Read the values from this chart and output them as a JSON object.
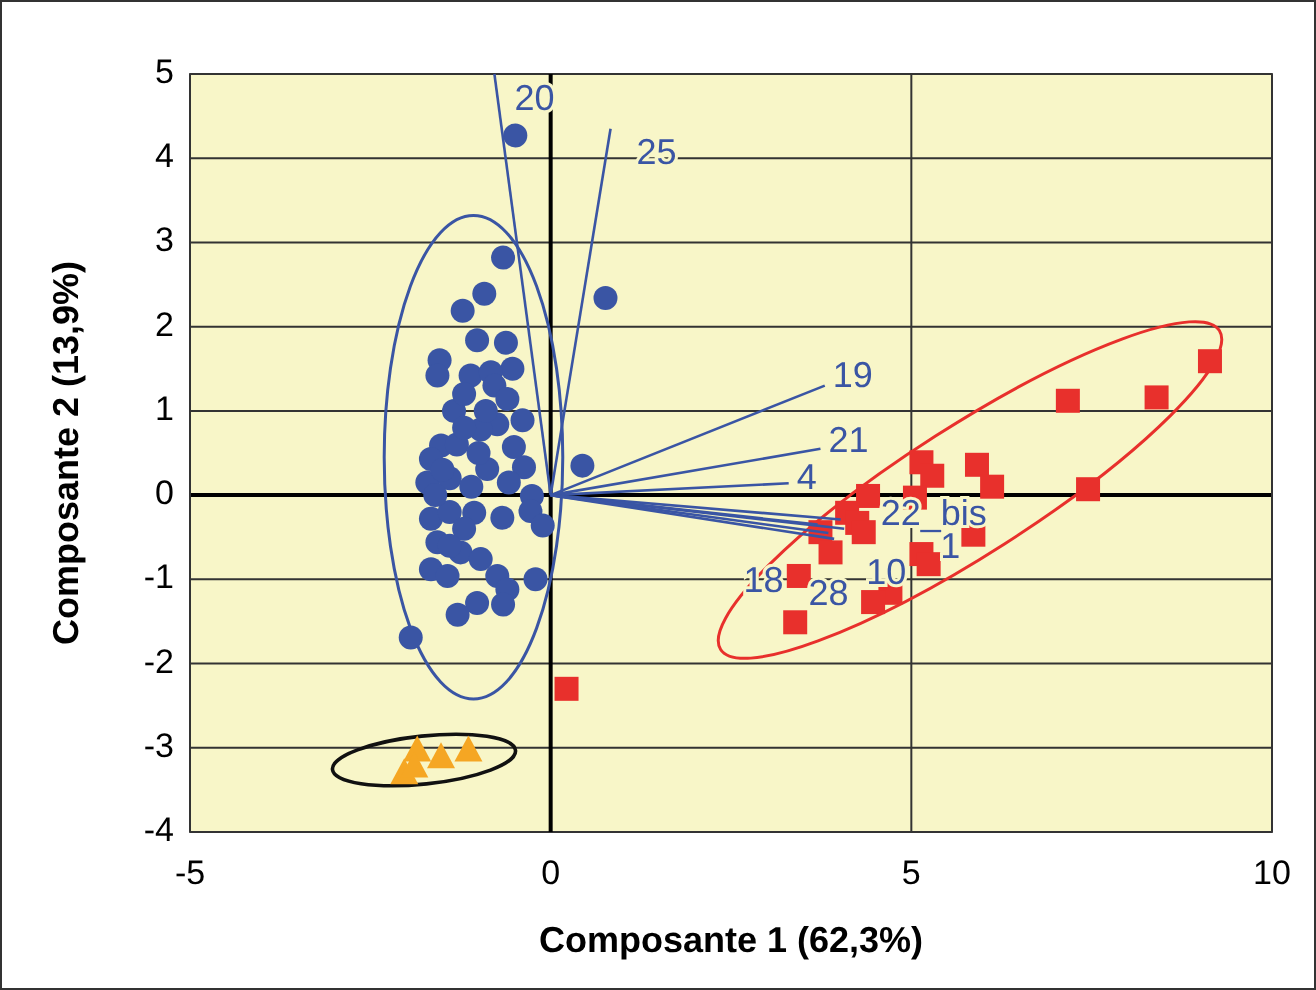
{
  "chart_data": {
    "type": "scatter",
    "xlabel": "Composante 1 (62,3%)",
    "ylabel": "Composante 2 (13,9%)",
    "xlim": [
      -5,
      10
    ],
    "ylim": [
      -4,
      5
    ],
    "xticks": [
      -5,
      0,
      5,
      10
    ],
    "yticks": [
      -4,
      -3,
      -2,
      -1,
      0,
      1,
      2,
      3,
      4,
      5
    ],
    "grid": true,
    "series": [
      {
        "marker": "circle",
        "color": "#3a55a4",
        "x": [
          -0.49,
          0.76,
          -0.66,
          -0.92,
          -1.22,
          -1.02,
          -0.62,
          -1.54,
          -1.57,
          -1.11,
          -0.53,
          -0.83,
          -0.78,
          -0.6,
          -1.34,
          -0.39,
          -0.74,
          -0.97,
          -0.51,
          -0.37,
          0.44,
          -1.52,
          -1.66,
          -1.71,
          -0.88,
          -0.58,
          -0.26,
          -0.28,
          -0.11,
          -0.67,
          -1.66,
          -1.06,
          -1.57,
          -1.25,
          -1.66,
          -1.43,
          -0.97,
          -0.74,
          -0.21,
          -0.6,
          -0.66,
          -1.02,
          -1.29,
          -1.94,
          -1.4,
          -1.3,
          -1.2,
          -1.5,
          -1.4,
          -1.2,
          -1.4,
          -1.1,
          -1.6,
          -1.0,
          -1.2,
          -0.9
        ],
        "values": [
          4.27,
          2.34,
          2.82,
          2.39,
          2.19,
          1.84,
          1.81,
          1.6,
          1.42,
          1.42,
          1.5,
          1.46,
          1.3,
          1.14,
          1.0,
          0.89,
          0.84,
          0.78,
          0.57,
          0.33,
          0.35,
          0.59,
          0.43,
          0.15,
          0.31,
          0.15,
          -0.01,
          -0.19,
          -0.36,
          -0.27,
          -0.28,
          -0.21,
          -0.56,
          -0.68,
          -0.88,
          -0.96,
          -0.76,
          -0.96,
          -1.0,
          -1.12,
          -1.3,
          -1.28,
          -1.42,
          -1.69,
          0.2,
          0.6,
          0.8,
          0.3,
          -0.2,
          -0.4,
          -0.6,
          0.1,
          0.0,
          0.5,
          1.2,
          1.0
        ]
      },
      {
        "marker": "square",
        "color": "#e8302c",
        "x": [
          9.14,
          8.4,
          7.17,
          7.45,
          5.91,
          6.12,
          5.14,
          5.29,
          5.05,
          4.4,
          5.86,
          5.14,
          5.24,
          4.11,
          4.25,
          3.74,
          3.88,
          4.34,
          4.71,
          4.47,
          3.44,
          3.39,
          0.22
        ],
        "values": [
          1.59,
          1.16,
          1.12,
          0.07,
          0.36,
          0.1,
          0.39,
          0.23,
          -0.03,
          -0.01,
          -0.47,
          -0.7,
          -0.82,
          -0.21,
          -0.33,
          -0.44,
          -0.68,
          -0.44,
          -1.16,
          -1.27,
          -0.96,
          -1.51,
          -2.3
        ]
      },
      {
        "marker": "triangle",
        "color": "#f5a623",
        "x": [
          -1.85,
          -1.52,
          -1.14,
          -2.03,
          -1.89
        ],
        "values": [
          -3.02,
          -3.1,
          -3.02,
          -3.29,
          -3.21
        ]
      },
      {
        "type": "line",
        "name": "20",
        "marker": "none",
        "color": "#3a55a4",
        "x": [
          0,
          -0.78
        ],
        "values": [
          0,
          5
        ]
      },
      {
        "type": "line",
        "name": "25",
        "marker": "none",
        "color": "#3a55a4",
        "x": [
          0,
          0.83
        ],
        "values": [
          0,
          4.35
        ]
      },
      {
        "type": "line",
        "name": "19",
        "marker": "none",
        "color": "#3a55a4",
        "x": [
          0,
          3.8
        ],
        "values": [
          0,
          1.3
        ]
      },
      {
        "type": "line",
        "name": "21",
        "marker": "none",
        "color": "#3a55a4",
        "x": [
          0,
          3.74
        ],
        "values": [
          0,
          0.55
        ]
      },
      {
        "type": "line",
        "name": "4",
        "marker": "none",
        "color": "#3a55a4",
        "x": [
          0,
          3.3
        ],
        "values": [
          0,
          0.14
        ]
      },
      {
        "type": "line",
        "name": "22_bis",
        "marker": "none",
        "color": "#3a55a4",
        "x": [
          0,
          4.02
        ],
        "values": [
          0,
          -0.29
        ]
      },
      {
        "type": "line",
        "name": "1",
        "marker": "none",
        "color": "#3a55a4",
        "x": [
          0,
          4.07
        ],
        "values": [
          0,
          -0.4
        ]
      },
      {
        "type": "line",
        "name": "10",
        "marker": "none",
        "color": "#3a55a4",
        "x": [
          0,
          3.93
        ],
        "values": [
          0,
          -0.52
        ]
      },
      {
        "type": "line",
        "name": "18",
        "marker": "none",
        "color": "#3a55a4",
        "x": [
          0,
          3.7
        ],
        "values": [
          0,
          -0.35
        ]
      },
      {
        "type": "line",
        "name": "28",
        "marker": "none",
        "color": "#3a55a4",
        "x": [
          0,
          3.85
        ],
        "values": [
          0,
          -0.45
        ]
      }
    ]
  }
}
